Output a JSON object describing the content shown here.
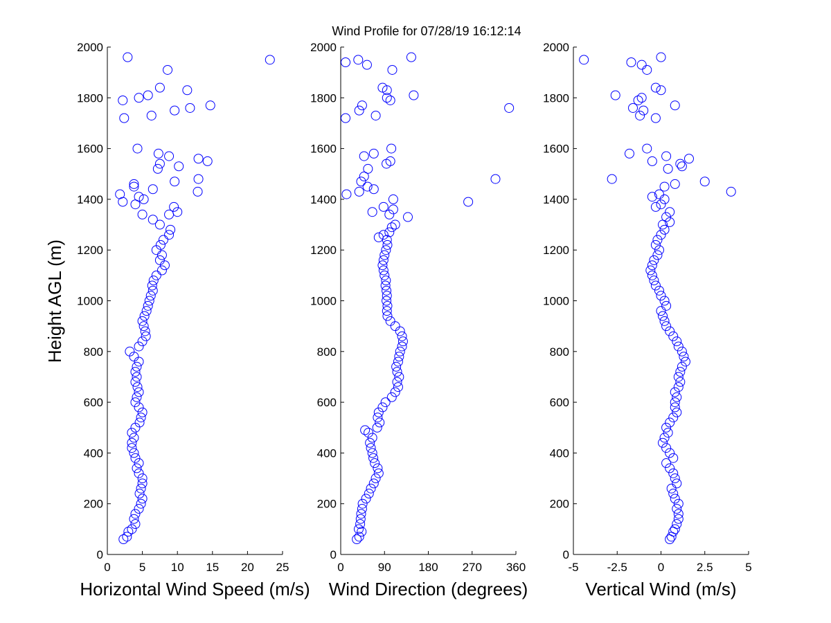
{
  "chart_data": {
    "type": "scatter",
    "title": "Wind Profile for  07/28/19 16:12:14",
    "ylabel": "Height AGL (m)",
    "ylim": [
      0,
      2000
    ],
    "yticks": [
      0,
      200,
      400,
      600,
      800,
      1000,
      1200,
      1400,
      1600,
      1800,
      2000
    ],
    "marker": "open-circle",
    "marker_color": "#0000ff",
    "grid": false,
    "panels": [
      {
        "xlabel": "Horizontal Wind Speed (m/s)",
        "xlim": [
          0,
          25
        ],
        "xticks": [
          0,
          5,
          10,
          15,
          20,
          25
        ],
        "xticklabels": [
          "0",
          "5",
          "10",
          "15",
          "20",
          "25"
        ],
        "points": [
          [
            2.3,
            60
          ],
          [
            2.8,
            70
          ],
          [
            3.0,
            90
          ],
          [
            3.5,
            100
          ],
          [
            4.0,
            120
          ],
          [
            3.8,
            140
          ],
          [
            4.0,
            160
          ],
          [
            4.5,
            180
          ],
          [
            4.8,
            200
          ],
          [
            5.0,
            220
          ],
          [
            4.6,
            240
          ],
          [
            4.8,
            260
          ],
          [
            5.0,
            280
          ],
          [
            5.0,
            300
          ],
          [
            4.5,
            320
          ],
          [
            4.2,
            340
          ],
          [
            4.5,
            360
          ],
          [
            4.0,
            380
          ],
          [
            3.8,
            400
          ],
          [
            3.5,
            420
          ],
          [
            3.5,
            440
          ],
          [
            3.8,
            460
          ],
          [
            3.5,
            480
          ],
          [
            4.0,
            500
          ],
          [
            4.6,
            520
          ],
          [
            4.8,
            540
          ],
          [
            5.0,
            560
          ],
          [
            4.5,
            580
          ],
          [
            4.0,
            600
          ],
          [
            4.2,
            620
          ],
          [
            4.5,
            640
          ],
          [
            4.3,
            660
          ],
          [
            4.0,
            680
          ],
          [
            4.2,
            700
          ],
          [
            4.0,
            720
          ],
          [
            4.2,
            740
          ],
          [
            4.5,
            760
          ],
          [
            3.8,
            780
          ],
          [
            3.2,
            800
          ],
          [
            4.5,
            820
          ],
          [
            5.0,
            840
          ],
          [
            5.5,
            860
          ],
          [
            5.4,
            880
          ],
          [
            5.2,
            900
          ],
          [
            5.0,
            920
          ],
          [
            5.3,
            940
          ],
          [
            5.6,
            960
          ],
          [
            5.8,
            980
          ],
          [
            6.0,
            1000
          ],
          [
            6.2,
            1020
          ],
          [
            6.5,
            1040
          ],
          [
            6.4,
            1060
          ],
          [
            6.6,
            1080
          ],
          [
            7.0,
            1100
          ],
          [
            7.8,
            1120
          ],
          [
            8.2,
            1140
          ],
          [
            7.5,
            1160
          ],
          [
            7.8,
            1180
          ],
          [
            7.0,
            1200
          ],
          [
            7.6,
            1220
          ],
          [
            8.0,
            1240
          ],
          [
            8.8,
            1260
          ],
          [
            9.0,
            1280
          ],
          [
            7.5,
            1300
          ],
          [
            6.5,
            1320
          ],
          [
            8.8,
            1340
          ],
          [
            9.5,
            1370
          ],
          [
            10.0,
            1350
          ],
          [
            5.0,
            1340
          ],
          [
            2.2,
            1390
          ],
          [
            4.0,
            1380
          ],
          [
            5.2,
            1400
          ],
          [
            4.5,
            1410
          ],
          [
            1.8,
            1420
          ],
          [
            6.5,
            1440
          ],
          [
            3.8,
            1450
          ],
          [
            3.8,
            1460
          ],
          [
            9.6,
            1470
          ],
          [
            13.0,
            1480
          ],
          [
            12.9,
            1430
          ],
          [
            7.2,
            1520
          ],
          [
            10.2,
            1530
          ],
          [
            7.5,
            1540
          ],
          [
            14.3,
            1550
          ],
          [
            13.0,
            1560
          ],
          [
            7.3,
            1580
          ],
          [
            8.8,
            1570
          ],
          [
            4.3,
            1600
          ],
          [
            2.4,
            1720
          ],
          [
            6.3,
            1730
          ],
          [
            9.6,
            1750
          ],
          [
            11.8,
            1760
          ],
          [
            14.7,
            1770
          ],
          [
            2.2,
            1790
          ],
          [
            4.5,
            1800
          ],
          [
            5.8,
            1810
          ],
          [
            11.4,
            1830
          ],
          [
            7.5,
            1840
          ],
          [
            8.6,
            1910
          ],
          [
            23.2,
            1950
          ],
          [
            2.9,
            1960
          ]
        ]
      },
      {
        "xlabel": "Wind Direction (degrees)",
        "xlim": [
          0,
          360
        ],
        "xticks": [
          0,
          90,
          180,
          270,
          360
        ],
        "xticklabels": [
          "0",
          "90",
          "180",
          "270",
          "360"
        ],
        "points": [
          [
            33,
            60
          ],
          [
            38,
            70
          ],
          [
            43,
            90
          ],
          [
            37,
            100
          ],
          [
            40,
            120
          ],
          [
            41,
            140
          ],
          [
            42,
            160
          ],
          [
            44,
            180
          ],
          [
            45,
            200
          ],
          [
            52,
            220
          ],
          [
            58,
            240
          ],
          [
            62,
            260
          ],
          [
            68,
            280
          ],
          [
            72,
            300
          ],
          [
            78,
            320
          ],
          [
            76,
            340
          ],
          [
            70,
            360
          ],
          [
            67,
            380
          ],
          [
            65,
            400
          ],
          [
            62,
            420
          ],
          [
            60,
            440
          ],
          [
            65,
            460
          ],
          [
            57,
            480
          ],
          [
            50,
            490
          ],
          [
            75,
            500
          ],
          [
            80,
            520
          ],
          [
            76,
            540
          ],
          [
            78,
            560
          ],
          [
            86,
            580
          ],
          [
            92,
            600
          ],
          [
            105,
            620
          ],
          [
            112,
            640
          ],
          [
            118,
            660
          ],
          [
            116,
            680
          ],
          [
            120,
            700
          ],
          [
            116,
            720
          ],
          [
            114,
            740
          ],
          [
            118,
            760
          ],
          [
            120,
            780
          ],
          [
            122,
            800
          ],
          [
            126,
            820
          ],
          [
            128,
            840
          ],
          [
            126,
            860
          ],
          [
            122,
            880
          ],
          [
            112,
            900
          ],
          [
            102,
            920
          ],
          [
            96,
            940
          ],
          [
            95,
            960
          ],
          [
            96,
            980
          ],
          [
            94,
            1000
          ],
          [
            95,
            1020
          ],
          [
            94,
            1040
          ],
          [
            92,
            1060
          ],
          [
            93,
            1080
          ],
          [
            90,
            1100
          ],
          [
            88,
            1120
          ],
          [
            86,
            1140
          ],
          [
            88,
            1160
          ],
          [
            90,
            1180
          ],
          [
            93,
            1200
          ],
          [
            96,
            1220
          ],
          [
            95,
            1240
          ],
          [
            78,
            1250
          ],
          [
            88,
            1260
          ],
          [
            100,
            1270
          ],
          [
            105,
            1290
          ],
          [
            112,
            1300
          ],
          [
            138,
            1330
          ],
          [
            100,
            1340
          ],
          [
            65,
            1350
          ],
          [
            108,
            1360
          ],
          [
            88,
            1370
          ],
          [
            108,
            1400
          ],
          [
            262,
            1390
          ],
          [
            12,
            1420
          ],
          [
            38,
            1430
          ],
          [
            68,
            1440
          ],
          [
            55,
            1450
          ],
          [
            42,
            1470
          ],
          [
            48,
            1490
          ],
          [
            318,
            1480
          ],
          [
            56,
            1520
          ],
          [
            94,
            1540
          ],
          [
            102,
            1550
          ],
          [
            48,
            1570
          ],
          [
            68,
            1580
          ],
          [
            104,
            1600
          ],
          [
            10,
            1720
          ],
          [
            72,
            1730
          ],
          [
            38,
            1750
          ],
          [
            346,
            1760
          ],
          [
            44,
            1770
          ],
          [
            102,
            1790
          ],
          [
            95,
            1800
          ],
          [
            150,
            1810
          ],
          [
            86,
            1840
          ],
          [
            95,
            1830
          ],
          [
            106,
            1910
          ],
          [
            54,
            1930
          ],
          [
            10,
            1940
          ],
          [
            36,
            1950
          ],
          [
            145,
            1960
          ]
        ]
      },
      {
        "xlabel": "Vertical Wind (m/s)",
        "xlim": [
          -5,
          5
        ],
        "xticks": [
          -5,
          -2.5,
          0,
          2.5,
          5
        ],
        "xticklabels": [
          "-5",
          "-2.5",
          "0",
          "2.5",
          "5"
        ],
        "points": [
          [
            0.5,
            60
          ],
          [
            0.6,
            70
          ],
          [
            0.7,
            90
          ],
          [
            0.8,
            100
          ],
          [
            0.9,
            120
          ],
          [
            1.0,
            140
          ],
          [
            1.0,
            160
          ],
          [
            0.9,
            180
          ],
          [
            1.0,
            200
          ],
          [
            0.8,
            220
          ],
          [
            0.7,
            240
          ],
          [
            0.6,
            260
          ],
          [
            0.9,
            280
          ],
          [
            0.8,
            300
          ],
          [
            0.7,
            320
          ],
          [
            0.5,
            340
          ],
          [
            0.3,
            360
          ],
          [
            0.7,
            380
          ],
          [
            0.5,
            400
          ],
          [
            0.3,
            420
          ],
          [
            0.1,
            440
          ],
          [
            0.2,
            460
          ],
          [
            0.4,
            480
          ],
          [
            0.3,
            500
          ],
          [
            0.5,
            520
          ],
          [
            0.7,
            540
          ],
          [
            0.9,
            560
          ],
          [
            0.8,
            580
          ],
          [
            0.8,
            600
          ],
          [
            0.9,
            620
          ],
          [
            0.8,
            640
          ],
          [
            1.0,
            660
          ],
          [
            1.1,
            680
          ],
          [
            1.0,
            700
          ],
          [
            1.1,
            720
          ],
          [
            1.2,
            740
          ],
          [
            1.4,
            760
          ],
          [
            1.3,
            780
          ],
          [
            1.2,
            800
          ],
          [
            1.0,
            820
          ],
          [
            0.9,
            840
          ],
          [
            0.7,
            860
          ],
          [
            0.5,
            880
          ],
          [
            0.3,
            900
          ],
          [
            0.2,
            920
          ],
          [
            0.1,
            940
          ],
          [
            0.0,
            960
          ],
          [
            0.3,
            980
          ],
          [
            0.2,
            1000
          ],
          [
            0.0,
            1020
          ],
          [
            -0.1,
            1040
          ],
          [
            -0.3,
            1060
          ],
          [
            -0.4,
            1080
          ],
          [
            -0.5,
            1100
          ],
          [
            -0.6,
            1120
          ],
          [
            -0.5,
            1140
          ],
          [
            -0.4,
            1160
          ],
          [
            -0.2,
            1180
          ],
          [
            -0.1,
            1200
          ],
          [
            -0.3,
            1220
          ],
          [
            -0.2,
            1240
          ],
          [
            0.0,
            1260
          ],
          [
            0.2,
            1280
          ],
          [
            0.1,
            1300
          ],
          [
            0.5,
            1310
          ],
          [
            0.3,
            1330
          ],
          [
            0.5,
            1350
          ],
          [
            -0.3,
            1370
          ],
          [
            0.0,
            1380
          ],
          [
            0.2,
            1400
          ],
          [
            -0.5,
            1410
          ],
          [
            -0.1,
            1420
          ],
          [
            0.8,
            1460
          ],
          [
            0.2,
            1450
          ],
          [
            2.5,
            1470
          ],
          [
            -2.8,
            1480
          ],
          [
            4.0,
            1430
          ],
          [
            1.2,
            1530
          ],
          [
            1.1,
            1540
          ],
          [
            0.4,
            1520
          ],
          [
            1.6,
            1560
          ],
          [
            -0.5,
            1550
          ],
          [
            0.3,
            1570
          ],
          [
            -1.8,
            1580
          ],
          [
            -0.8,
            1600
          ],
          [
            -0.3,
            1720
          ],
          [
            -1.2,
            1730
          ],
          [
            -1.6,
            1760
          ],
          [
            -1.0,
            1750
          ],
          [
            0.8,
            1770
          ],
          [
            -1.3,
            1790
          ],
          [
            -1.1,
            1800
          ],
          [
            -2.6,
            1810
          ],
          [
            0.0,
            1830
          ],
          [
            -0.3,
            1840
          ],
          [
            -0.8,
            1910
          ],
          [
            -1.1,
            1930
          ],
          [
            -1.7,
            1940
          ],
          [
            -4.4,
            1950
          ],
          [
            0.0,
            1960
          ]
        ]
      }
    ]
  }
}
